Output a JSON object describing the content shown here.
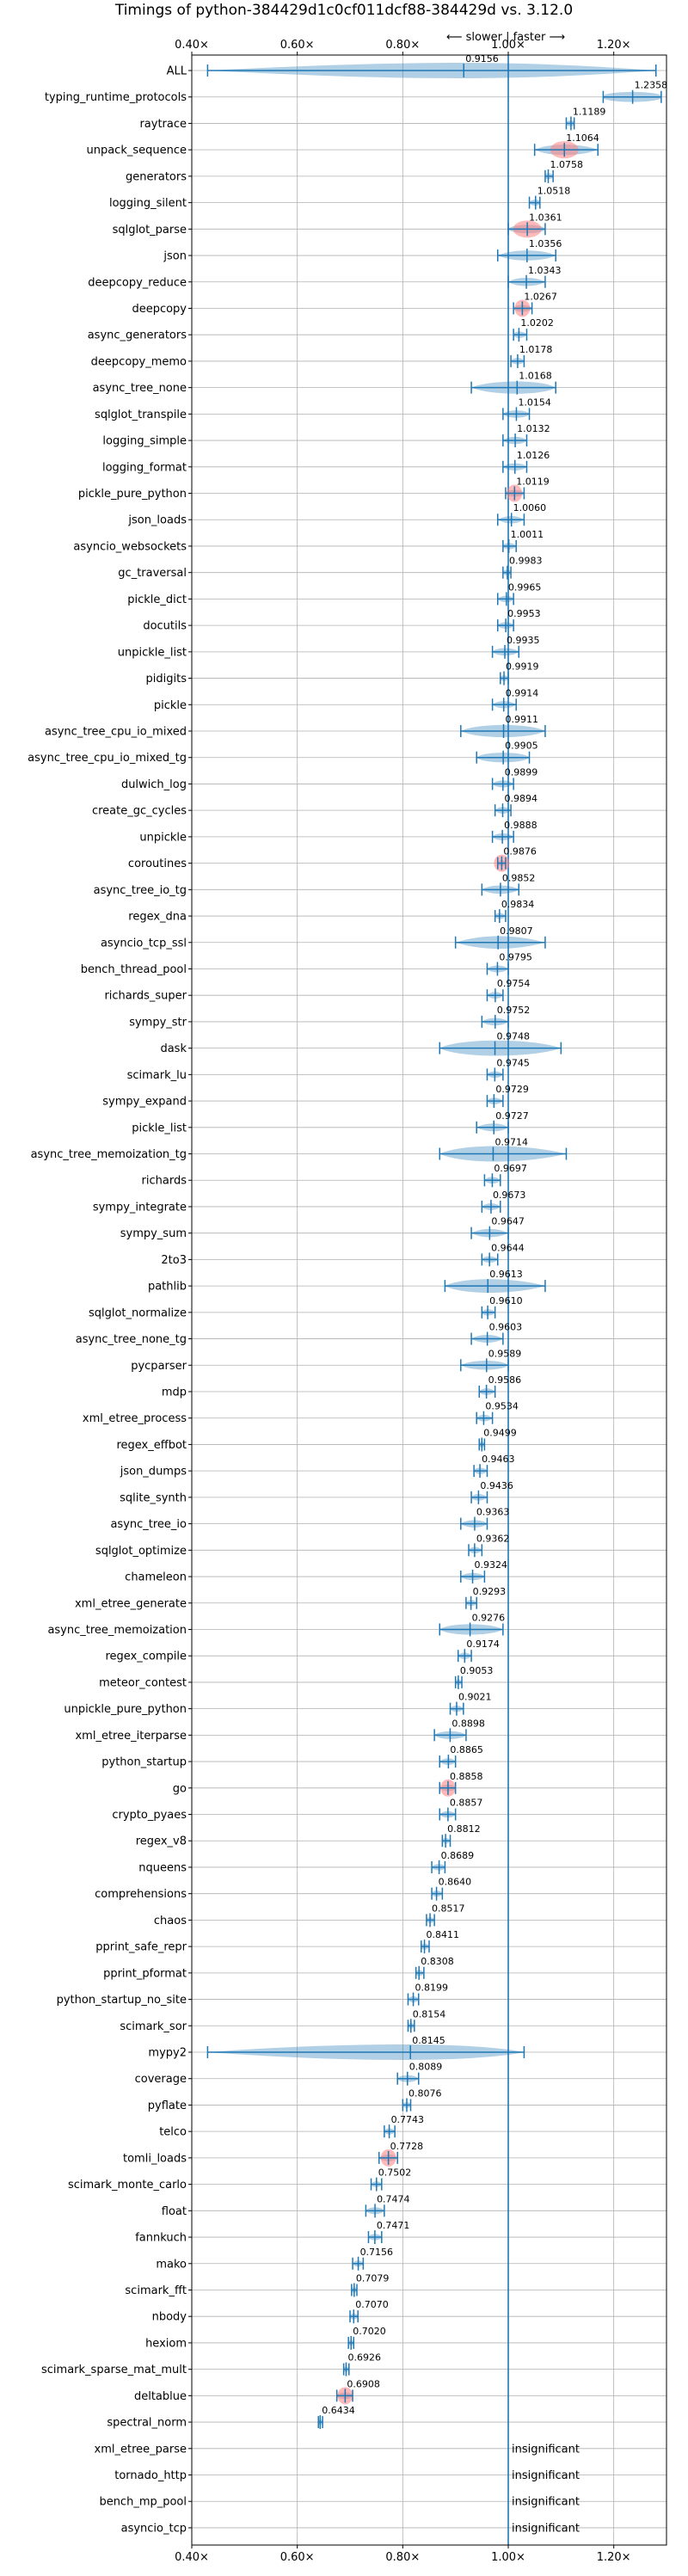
{
  "chart_data": {
    "type": "violin",
    "title": "Timings of python-384429d1c0cf011dcf88-384429d vs. 3.12.0",
    "direction_label": "⟵ slower | faster ⟶",
    "xlim": [
      0.4,
      1.3
    ],
    "xticks": [
      {
        "value": 0.4,
        "label": "0.40×"
      },
      {
        "value": 0.6,
        "label": "0.60×"
      },
      {
        "value": 0.8,
        "label": "0.80×"
      },
      {
        "value": 1.0,
        "label": "1.00×"
      },
      {
        "value": 1.2,
        "label": "1.20×"
      }
    ],
    "grid": true,
    "reference_line": 1.0,
    "colors": {
      "violin": "#1f77b4",
      "significant": "#ff7f7f",
      "axis": "#000000",
      "grid": "#b0b0b0"
    },
    "benchmarks": [
      {
        "name": "ALL",
        "value": 0.9156,
        "label": "0.9156",
        "min": 0.43,
        "max": 1.28,
        "spread": 0.1,
        "highlight": false
      },
      {
        "name": "typing_runtime_protocols",
        "value": 1.2358,
        "label": "1.2358",
        "min": 1.18,
        "max": 1.29,
        "spread": 0.06,
        "highlight": false
      },
      {
        "name": "raytrace",
        "value": 1.1189,
        "label": "1.1189",
        "min": 1.11,
        "max": 1.125,
        "spread": 0.01,
        "highlight": false
      },
      {
        "name": "unpack_sequence",
        "value": 1.1064,
        "label": "1.1064",
        "min": 1.05,
        "max": 1.17,
        "spread": 0.03,
        "highlight": true
      },
      {
        "name": "generators",
        "value": 1.0758,
        "label": "1.0758",
        "min": 1.07,
        "max": 1.085,
        "spread": 0.01,
        "highlight": false
      },
      {
        "name": "logging_silent",
        "value": 1.0518,
        "label": "1.0518",
        "min": 1.04,
        "max": 1.06,
        "spread": 0.01,
        "highlight": false
      },
      {
        "name": "sqlglot_parse",
        "value": 1.0361,
        "label": "1.0361",
        "min": 1.0,
        "max": 1.07,
        "spread": 0.03,
        "highlight": true
      },
      {
        "name": "json",
        "value": 1.0356,
        "label": "1.0356",
        "min": 0.98,
        "max": 1.09,
        "spread": 0.03,
        "highlight": false
      },
      {
        "name": "deepcopy_reduce",
        "value": 1.0343,
        "label": "1.0343",
        "min": 1.0,
        "max": 1.07,
        "spread": 0.02,
        "highlight": false
      },
      {
        "name": "deepcopy",
        "value": 1.0267,
        "label": "1.0267",
        "min": 1.01,
        "max": 1.045,
        "spread": 0.015,
        "highlight": true
      },
      {
        "name": "async_generators",
        "value": 1.0202,
        "label": "1.0202",
        "min": 1.01,
        "max": 1.035,
        "spread": 0.01,
        "highlight": false
      },
      {
        "name": "deepcopy_memo",
        "value": 1.0178,
        "label": "1.0178",
        "min": 1.005,
        "max": 1.03,
        "spread": 0.01,
        "highlight": false
      },
      {
        "name": "async_tree_none",
        "value": 1.0168,
        "label": "1.0168",
        "min": 0.93,
        "max": 1.09,
        "spread": 0.05,
        "highlight": false
      },
      {
        "name": "sqlglot_transpile",
        "value": 1.0154,
        "label": "1.0154",
        "min": 0.99,
        "max": 1.04,
        "spread": 0.02,
        "highlight": false
      },
      {
        "name": "logging_simple",
        "value": 1.0132,
        "label": "1.0132",
        "min": 0.99,
        "max": 1.035,
        "spread": 0.015,
        "highlight": false
      },
      {
        "name": "logging_format",
        "value": 1.0126,
        "label": "1.0126",
        "min": 0.99,
        "max": 1.035,
        "spread": 0.015,
        "highlight": false
      },
      {
        "name": "pickle_pure_python",
        "value": 1.0119,
        "label": "1.0119",
        "min": 0.995,
        "max": 1.03,
        "spread": 0.015,
        "highlight": true
      },
      {
        "name": "json_loads",
        "value": 1.006,
        "label": "1.0060",
        "min": 0.98,
        "max": 1.03,
        "spread": 0.01,
        "highlight": false
      },
      {
        "name": "asyncio_websockets",
        "value": 1.0011,
        "label": "1.0011",
        "min": 0.99,
        "max": 1.015,
        "spread": 0.01,
        "highlight": false
      },
      {
        "name": "gc_traversal",
        "value": 0.9983,
        "label": "0.9983",
        "min": 0.99,
        "max": 1.005,
        "spread": 0.008,
        "highlight": false
      },
      {
        "name": "pickle_dict",
        "value": 0.9965,
        "label": "0.9965",
        "min": 0.98,
        "max": 1.01,
        "spread": 0.01,
        "highlight": false
      },
      {
        "name": "docutils",
        "value": 0.9953,
        "label": "0.9953",
        "min": 0.98,
        "max": 1.01,
        "spread": 0.012,
        "highlight": false
      },
      {
        "name": "unpickle_list",
        "value": 0.9935,
        "label": "0.9935",
        "min": 0.97,
        "max": 1.02,
        "spread": 0.015,
        "highlight": false
      },
      {
        "name": "pidigits",
        "value": 0.9919,
        "label": "0.9919",
        "min": 0.985,
        "max": 1.0,
        "spread": 0.007,
        "highlight": false
      },
      {
        "name": "pickle",
        "value": 0.9914,
        "label": "0.9914",
        "min": 0.97,
        "max": 1.015,
        "spread": 0.012,
        "highlight": false
      },
      {
        "name": "async_tree_cpu_io_mixed",
        "value": 0.9911,
        "label": "0.9911",
        "min": 0.91,
        "max": 1.07,
        "spread": 0.05,
        "highlight": false
      },
      {
        "name": "async_tree_cpu_io_mixed_tg",
        "value": 0.9905,
        "label": "0.9905",
        "min": 0.94,
        "max": 1.04,
        "spread": 0.04,
        "highlight": false
      },
      {
        "name": "dulwich_log",
        "value": 0.9899,
        "label": "0.9899",
        "min": 0.97,
        "max": 1.01,
        "spread": 0.012,
        "highlight": false
      },
      {
        "name": "create_gc_cycles",
        "value": 0.9894,
        "label": "0.9894",
        "min": 0.975,
        "max": 1.005,
        "spread": 0.01,
        "highlight": false
      },
      {
        "name": "unpickle",
        "value": 0.9888,
        "label": "0.9888",
        "min": 0.97,
        "max": 1.01,
        "spread": 0.012,
        "highlight": false
      },
      {
        "name": "coroutines",
        "value": 0.9876,
        "label": "0.9876",
        "min": 0.98,
        "max": 0.995,
        "spread": 0.008,
        "highlight": true
      },
      {
        "name": "async_tree_io_tg",
        "value": 0.9852,
        "label": "0.9852",
        "min": 0.95,
        "max": 1.02,
        "spread": 0.02,
        "highlight": false
      },
      {
        "name": "regex_dna",
        "value": 0.9834,
        "label": "0.9834",
        "min": 0.975,
        "max": 0.995,
        "spread": 0.008,
        "highlight": false
      },
      {
        "name": "asyncio_tcp_ssl",
        "value": 0.9807,
        "label": "0.9807",
        "min": 0.9,
        "max": 1.07,
        "spread": 0.03,
        "highlight": false
      },
      {
        "name": "bench_thread_pool",
        "value": 0.9795,
        "label": "0.9795",
        "min": 0.96,
        "max": 1.0,
        "spread": 0.012,
        "highlight": false
      },
      {
        "name": "richards_super",
        "value": 0.9754,
        "label": "0.9754",
        "min": 0.96,
        "max": 0.99,
        "spread": 0.01,
        "highlight": false
      },
      {
        "name": "sympy_str",
        "value": 0.9752,
        "label": "0.9752",
        "min": 0.95,
        "max": 1.0,
        "spread": 0.015,
        "highlight": false
      },
      {
        "name": "dask",
        "value": 0.9748,
        "label": "0.9748",
        "min": 0.87,
        "max": 1.1,
        "spread": 0.07,
        "highlight": false
      },
      {
        "name": "scimark_lu",
        "value": 0.9745,
        "label": "0.9745",
        "min": 0.96,
        "max": 0.99,
        "spread": 0.01,
        "highlight": false
      },
      {
        "name": "sympy_expand",
        "value": 0.9729,
        "label": "0.9729",
        "min": 0.96,
        "max": 0.99,
        "spread": 0.01,
        "highlight": false
      },
      {
        "name": "pickle_list",
        "value": 0.9727,
        "label": "0.9727",
        "min": 0.94,
        "max": 1.0,
        "spread": 0.015,
        "highlight": false
      },
      {
        "name": "async_tree_memoization_tg",
        "value": 0.9714,
        "label": "0.9714",
        "min": 0.87,
        "max": 1.11,
        "spread": 0.06,
        "highlight": false
      },
      {
        "name": "richards",
        "value": 0.9697,
        "label": "0.9697",
        "min": 0.955,
        "max": 0.985,
        "spread": 0.01,
        "highlight": false
      },
      {
        "name": "sympy_integrate",
        "value": 0.9673,
        "label": "0.9673",
        "min": 0.95,
        "max": 0.985,
        "spread": 0.01,
        "highlight": false
      },
      {
        "name": "sympy_sum",
        "value": 0.9647,
        "label": "0.9647",
        "min": 0.93,
        "max": 1.0,
        "spread": 0.015,
        "highlight": false
      },
      {
        "name": "2to3",
        "value": 0.9644,
        "label": "0.9644",
        "min": 0.95,
        "max": 0.98,
        "spread": 0.01,
        "highlight": false
      },
      {
        "name": "pathlib",
        "value": 0.9613,
        "label": "0.9613",
        "min": 0.88,
        "max": 1.07,
        "spread": 0.05,
        "highlight": false
      },
      {
        "name": "sqlglot_normalize",
        "value": 0.961,
        "label": "0.9610",
        "min": 0.95,
        "max": 0.975,
        "spread": 0.01,
        "highlight": false
      },
      {
        "name": "async_tree_none_tg",
        "value": 0.9603,
        "label": "0.9603",
        "min": 0.93,
        "max": 0.99,
        "spread": 0.015,
        "highlight": false
      },
      {
        "name": "pycparser",
        "value": 0.9589,
        "label": "0.9589",
        "min": 0.91,
        "max": 1.0,
        "spread": 0.03,
        "highlight": false
      },
      {
        "name": "mdp",
        "value": 0.9586,
        "label": "0.9586",
        "min": 0.945,
        "max": 0.975,
        "spread": 0.01,
        "highlight": false
      },
      {
        "name": "xml_etree_process",
        "value": 0.9534,
        "label": "0.9534",
        "min": 0.94,
        "max": 0.97,
        "spread": 0.01,
        "highlight": false
      },
      {
        "name": "regex_effbot",
        "value": 0.9499,
        "label": "0.9499",
        "min": 0.945,
        "max": 0.955,
        "spread": 0.005,
        "highlight": false
      },
      {
        "name": "json_dumps",
        "value": 0.9463,
        "label": "0.9463",
        "min": 0.935,
        "max": 0.96,
        "spread": 0.01,
        "highlight": false
      },
      {
        "name": "sqlite_synth",
        "value": 0.9436,
        "label": "0.9436",
        "min": 0.93,
        "max": 0.96,
        "spread": 0.01,
        "highlight": false
      },
      {
        "name": "async_tree_io",
        "value": 0.9363,
        "label": "0.9363",
        "min": 0.91,
        "max": 0.96,
        "spread": 0.015,
        "highlight": false
      },
      {
        "name": "sqlglot_optimize",
        "value": 0.9362,
        "label": "0.9362",
        "min": 0.925,
        "max": 0.95,
        "spread": 0.008,
        "highlight": false
      },
      {
        "name": "chameleon",
        "value": 0.9324,
        "label": "0.9324",
        "min": 0.91,
        "max": 0.955,
        "spread": 0.015,
        "highlight": false
      },
      {
        "name": "xml_etree_generate",
        "value": 0.9293,
        "label": "0.9293",
        "min": 0.92,
        "max": 0.94,
        "spread": 0.008,
        "highlight": false
      },
      {
        "name": "async_tree_memoization",
        "value": 0.9276,
        "label": "0.9276",
        "min": 0.87,
        "max": 0.99,
        "spread": 0.04,
        "highlight": false
      },
      {
        "name": "regex_compile",
        "value": 0.9174,
        "label": "0.9174",
        "min": 0.905,
        "max": 0.93,
        "spread": 0.008,
        "highlight": false
      },
      {
        "name": "meteor_contest",
        "value": 0.9053,
        "label": "0.9053",
        "min": 0.9,
        "max": 0.912,
        "spread": 0.006,
        "highlight": false
      },
      {
        "name": "unpickle_pure_python",
        "value": 0.9021,
        "label": "0.9021",
        "min": 0.89,
        "max": 0.915,
        "spread": 0.008,
        "highlight": false
      },
      {
        "name": "xml_etree_iterparse",
        "value": 0.8898,
        "label": "0.8898",
        "min": 0.86,
        "max": 0.92,
        "spread": 0.02,
        "highlight": false
      },
      {
        "name": "python_startup",
        "value": 0.8865,
        "label": "0.8865",
        "min": 0.87,
        "max": 0.9,
        "spread": 0.01,
        "highlight": false
      },
      {
        "name": "go",
        "value": 0.8858,
        "label": "0.8858",
        "min": 0.87,
        "max": 0.9,
        "spread": 0.012,
        "highlight": true
      },
      {
        "name": "crypto_pyaes",
        "value": 0.8857,
        "label": "0.8857",
        "min": 0.87,
        "max": 0.9,
        "spread": 0.01,
        "highlight": false
      },
      {
        "name": "regex_v8",
        "value": 0.8812,
        "label": "0.8812",
        "min": 0.875,
        "max": 0.89,
        "spread": 0.006,
        "highlight": false
      },
      {
        "name": "nqueens",
        "value": 0.8689,
        "label": "0.8689",
        "min": 0.855,
        "max": 0.88,
        "spread": 0.01,
        "highlight": false
      },
      {
        "name": "comprehensions",
        "value": 0.864,
        "label": "0.8640",
        "min": 0.855,
        "max": 0.875,
        "spread": 0.008,
        "highlight": false
      },
      {
        "name": "chaos",
        "value": 0.8517,
        "label": "0.8517",
        "min": 0.845,
        "max": 0.86,
        "spread": 0.007,
        "highlight": false
      },
      {
        "name": "pprint_safe_repr",
        "value": 0.8411,
        "label": "0.8411",
        "min": 0.835,
        "max": 0.85,
        "spread": 0.007,
        "highlight": false
      },
      {
        "name": "pprint_pformat",
        "value": 0.8308,
        "label": "0.8308",
        "min": 0.825,
        "max": 0.84,
        "spread": 0.007,
        "highlight": false
      },
      {
        "name": "python_startup_no_site",
        "value": 0.8199,
        "label": "0.8199",
        "min": 0.81,
        "max": 0.83,
        "spread": 0.008,
        "highlight": false
      },
      {
        "name": "scimark_sor",
        "value": 0.8154,
        "label": "0.8154",
        "min": 0.81,
        "max": 0.822,
        "spread": 0.006,
        "highlight": false
      },
      {
        "name": "mypy2",
        "value": 0.8145,
        "label": "0.8145",
        "min": 0.43,
        "max": 1.03,
        "spread": 0.12,
        "highlight": false
      },
      {
        "name": "coverage",
        "value": 0.8089,
        "label": "0.8089",
        "min": 0.79,
        "max": 0.83,
        "spread": 0.015,
        "highlight": false
      },
      {
        "name": "pyflate",
        "value": 0.8076,
        "label": "0.8076",
        "min": 0.8,
        "max": 0.815,
        "spread": 0.008,
        "highlight": false
      },
      {
        "name": "telco",
        "value": 0.7743,
        "label": "0.7743",
        "min": 0.765,
        "max": 0.785,
        "spread": 0.008,
        "highlight": false
      },
      {
        "name": "tomli_loads",
        "value": 0.7728,
        "label": "0.7728",
        "min": 0.755,
        "max": 0.79,
        "spread": 0.012,
        "highlight": true
      },
      {
        "name": "scimark_monte_carlo",
        "value": 0.7502,
        "label": "0.7502",
        "min": 0.74,
        "max": 0.76,
        "spread": 0.007,
        "highlight": false
      },
      {
        "name": "float",
        "value": 0.7474,
        "label": "0.7474",
        "min": 0.73,
        "max": 0.765,
        "spread": 0.012,
        "highlight": false
      },
      {
        "name": "fannkuch",
        "value": 0.7471,
        "label": "0.7471",
        "min": 0.735,
        "max": 0.76,
        "spread": 0.01,
        "highlight": false
      },
      {
        "name": "mako",
        "value": 0.7156,
        "label": "0.7156",
        "min": 0.705,
        "max": 0.725,
        "spread": 0.008,
        "highlight": false
      },
      {
        "name": "scimark_fft",
        "value": 0.7079,
        "label": "0.7079",
        "min": 0.703,
        "max": 0.713,
        "spread": 0.005,
        "highlight": false
      },
      {
        "name": "nbody",
        "value": 0.707,
        "label": "0.7070",
        "min": 0.7,
        "max": 0.715,
        "spread": 0.007,
        "highlight": false
      },
      {
        "name": "hexiom",
        "value": 0.702,
        "label": "0.7020",
        "min": 0.697,
        "max": 0.707,
        "spread": 0.005,
        "highlight": false
      },
      {
        "name": "scimark_sparse_mat_mult",
        "value": 0.6926,
        "label": "0.6926",
        "min": 0.688,
        "max": 0.698,
        "spread": 0.005,
        "highlight": false
      },
      {
        "name": "deltablue",
        "value": 0.6908,
        "label": "0.6908",
        "min": 0.675,
        "max": 0.705,
        "spread": 0.012,
        "highlight": true
      },
      {
        "name": "spectral_norm",
        "value": 0.6434,
        "label": "0.6434",
        "min": 0.64,
        "max": 0.648,
        "spread": 0.005,
        "highlight": false
      },
      {
        "name": "xml_etree_parse",
        "value": null,
        "label": "insignificant"
      },
      {
        "name": "tornado_http",
        "value": null,
        "label": "insignificant"
      },
      {
        "name": "bench_mp_pool",
        "value": null,
        "label": "insignificant"
      },
      {
        "name": "asyncio_tcp",
        "value": null,
        "label": "insignificant"
      }
    ]
  }
}
